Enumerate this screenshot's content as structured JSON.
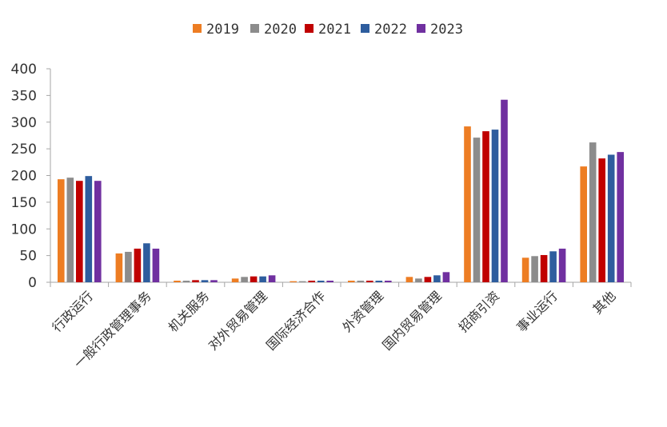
{
  "chart_data": {
    "type": "bar",
    "title": "",
    "xlabel": "",
    "ylabel": "",
    "ylim": [
      0,
      400
    ],
    "yticks": [
      0,
      50,
      100,
      150,
      200,
      250,
      300,
      350,
      400
    ],
    "ytick_labels": [
      "0",
      "50",
      "100",
      "150",
      "200",
      "250",
      "300",
      "350",
      "400"
    ],
    "grid": false,
    "legend_position": "top-center",
    "categories": [
      "行政运行",
      "一般行政管理事务",
      "机关服务",
      "对外贸易管理",
      "国际经济合作",
      "外资管理",
      "国内贸易管理",
      "招商引资",
      "事业运行",
      "其他"
    ],
    "series": [
      {
        "name": "2019",
        "color": "#ED7D23",
        "values": [
          193,
          54,
          3,
          7,
          2,
          3,
          10,
          292,
          46,
          217
        ]
      },
      {
        "name": "2020",
        "color": "#8C8C8C",
        "values": [
          196,
          57,
          3,
          10,
          2,
          3,
          7,
          271,
          49,
          262
        ]
      },
      {
        "name": "2021",
        "color": "#C00000",
        "values": [
          190,
          63,
          4,
          11,
          3,
          3,
          10,
          283,
          51,
          232
        ]
      },
      {
        "name": "2022",
        "color": "#2E5D9E",
        "values": [
          199,
          73,
          4,
          11,
          3,
          3,
          13,
          286,
          58,
          239
        ]
      },
      {
        "name": "2023",
        "color": "#7030A0",
        "values": [
          190,
          63,
          4,
          13,
          3,
          3,
          19,
          342,
          63,
          244
        ]
      }
    ]
  }
}
